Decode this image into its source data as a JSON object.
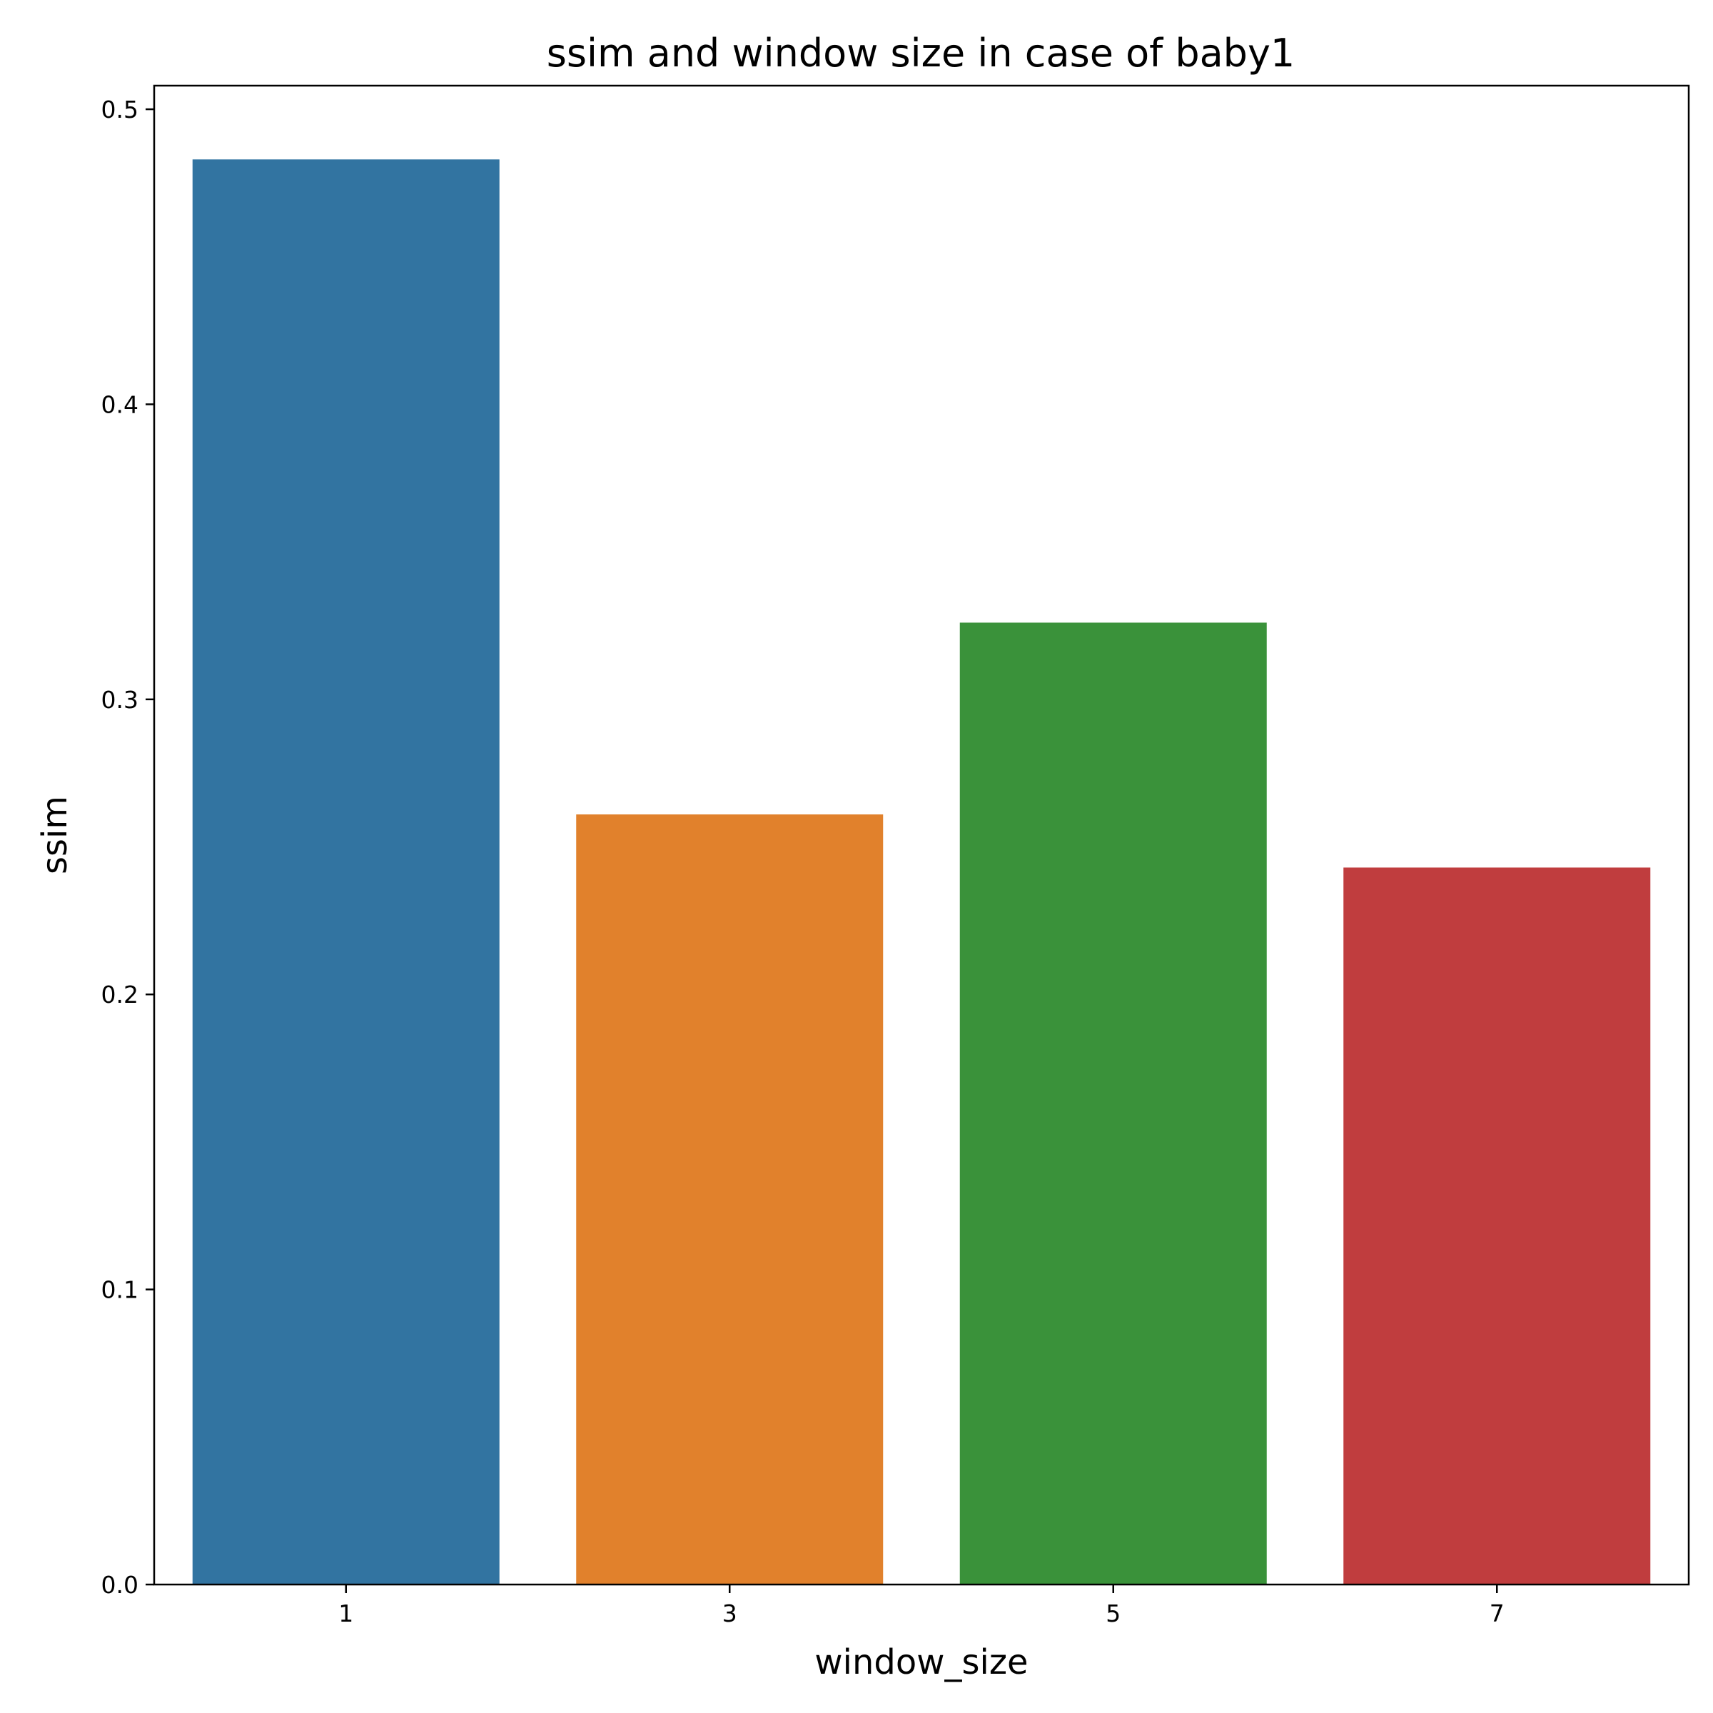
{
  "chart_data": {
    "type": "bar",
    "title": "ssim and window size in case of baby1",
    "xlabel": "window_size",
    "ylabel": "ssim",
    "categories": [
      "1",
      "3",
      "5",
      "7"
    ],
    "values": [
      0.483,
      0.261,
      0.326,
      0.243
    ],
    "colors": [
      "#3274a1",
      "#e1812c",
      "#3a923a",
      "#c03d3e"
    ],
    "ylim": [
      0,
      0.508
    ],
    "yticks": [
      0.0,
      0.1,
      0.2,
      0.3,
      0.4,
      0.5
    ],
    "ytick_labels": [
      "0.0",
      "0.1",
      "0.2",
      "0.3",
      "0.4",
      "0.5"
    ],
    "grid": false,
    "legend": "none"
  }
}
